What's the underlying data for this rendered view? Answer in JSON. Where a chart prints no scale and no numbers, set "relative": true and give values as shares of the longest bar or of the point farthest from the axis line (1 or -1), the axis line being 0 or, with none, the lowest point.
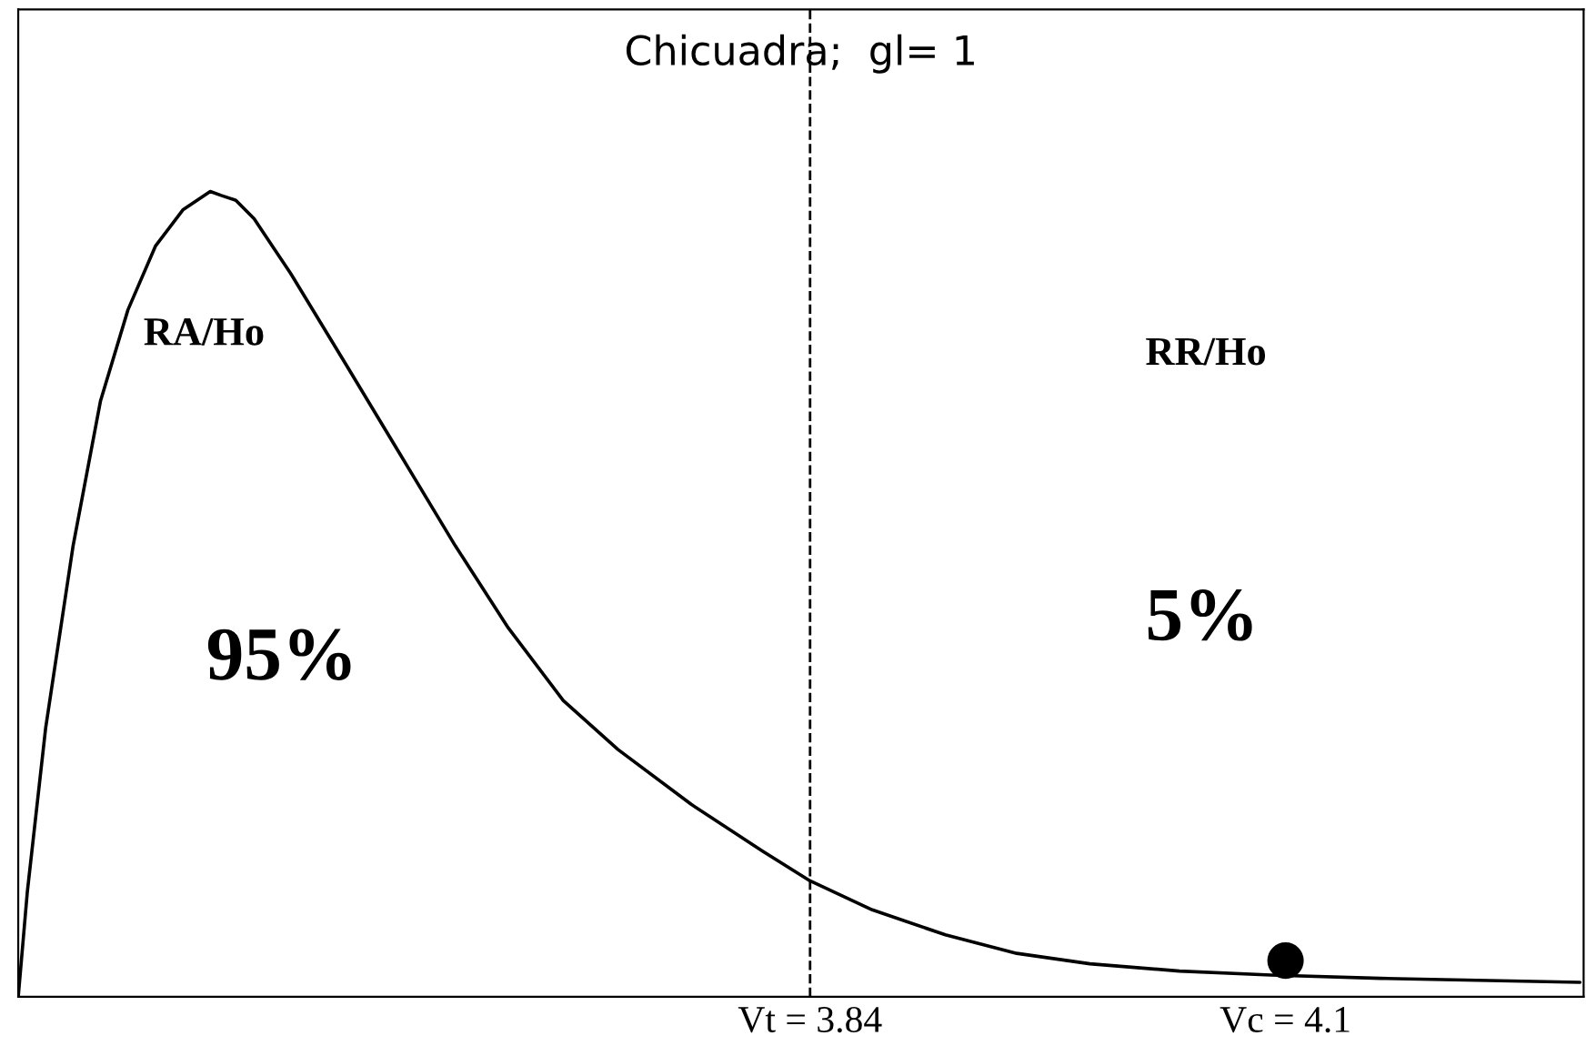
{
  "chart_data": {
    "type": "line",
    "title": "Chicuadra;  gl= 1",
    "relative": true,
    "tick_labels": "x",
    "grid": false,
    "legend": false,
    "line_style": "solid",
    "xlim": [
      3.407,
      4.263
    ],
    "xticks": [
      {
        "value": 3.84,
        "label": "Vt = 3.84"
      },
      {
        "value": 4.1,
        "label": "Vc = 4.1"
      }
    ],
    "series": [
      {
        "marker": "none",
        "color": "#000000",
        "x": [
          3.407,
          3.412,
          3.422,
          3.437,
          3.452,
          3.467,
          3.482,
          3.497,
          3.512,
          3.518,
          3.526,
          3.536,
          3.556,
          3.586,
          3.616,
          3.646,
          3.675,
          3.705,
          3.735,
          3.775,
          3.814,
          3.84,
          3.874,
          3.914,
          3.953,
          3.993,
          4.042,
          4.092,
          4.152,
          4.261
        ],
        "values": [
          0,
          0.131,
          0.334,
          0.56,
          0.74,
          0.853,
          0.932,
          0.977,
          1.0,
          0.995,
          0.989,
          0.966,
          0.898,
          0.786,
          0.673,
          0.56,
          0.458,
          0.368,
          0.307,
          0.239,
          0.181,
          0.144,
          0.108,
          0.077,
          0.054,
          0.041,
          0.032,
          0.027,
          0.023,
          0.018
        ]
      },
      {
        "type": "scatter",
        "marker": "circle",
        "color": "#000000",
        "x": [
          4.1
        ],
        "values": [
          0.045
        ]
      }
    ],
    "ref_lines": [
      {
        "axis": "x",
        "value": 3.84,
        "color": "#000000",
        "line_style": "dashed"
      }
    ],
    "annotations": [
      "RA/Ho",
      "95%",
      "RR/Ho",
      "5%"
    ]
  }
}
